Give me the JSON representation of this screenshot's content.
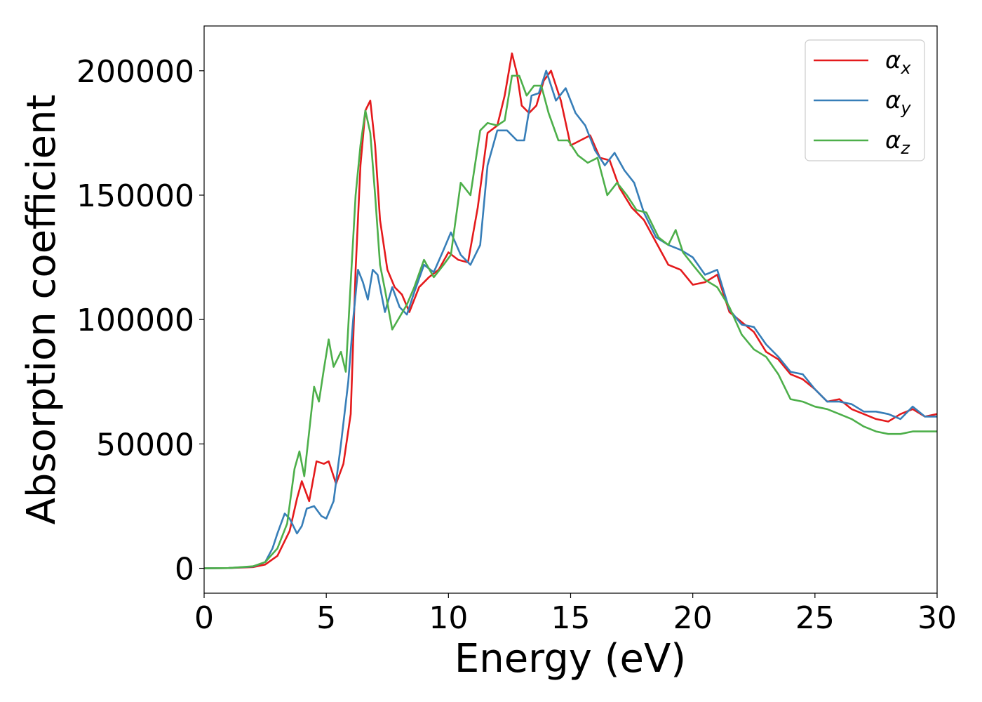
{
  "chart_data": {
    "type": "line",
    "xlabel": "Energy (eV)",
    "ylabel": "Absorption coefficient",
    "xlim": [
      0,
      30
    ],
    "ylim": [
      -10000,
      218000
    ],
    "xticks": [
      0,
      5,
      10,
      15,
      20,
      25,
      30
    ],
    "xtick_labels": [
      "0",
      "5",
      "10",
      "15",
      "20",
      "25",
      "30"
    ],
    "yticks": [
      0,
      50000,
      100000,
      150000,
      200000
    ],
    "ytick_labels": [
      "0",
      "50000",
      "100000",
      "150000",
      "200000"
    ],
    "grid": false,
    "legend_position": "top-right",
    "series": [
      {
        "name": "α",
        "subscript": "x",
        "color": "#e41a1c",
        "x": [
          0,
          1,
          2,
          2.5,
          3,
          3.5,
          3.8,
          4.0,
          4.3,
          4.6,
          4.9,
          5.1,
          5.4,
          5.7,
          6.0,
          6.2,
          6.4,
          6.6,
          6.8,
          7.0,
          7.2,
          7.5,
          7.8,
          8.1,
          8.4,
          8.8,
          9.2,
          9.6,
          10.0,
          10.4,
          10.8,
          11.2,
          11.6,
          12.0,
          12.3,
          12.6,
          12.8,
          13.0,
          13.3,
          13.6,
          13.9,
          14.2,
          14.6,
          15.0,
          15.4,
          15.8,
          16.2,
          16.6,
          17.0,
          17.5,
          18.0,
          18.5,
          19.0,
          19.5,
          20.0,
          20.5,
          21.0,
          21.5,
          22.0,
          22.5,
          23.0,
          23.5,
          24.0,
          24.5,
          25.0,
          25.5,
          26.0,
          26.5,
          27.0,
          27.5,
          28.0,
          28.5,
          29.0,
          29.5,
          30.0
        ],
        "y": [
          0,
          100,
          500,
          1500,
          5000,
          15000,
          28000,
          35000,
          27000,
          43000,
          42000,
          43000,
          34000,
          42000,
          62000,
          120000,
          162000,
          184000,
          188000,
          170000,
          140000,
          120000,
          113000,
          110000,
          103000,
          113000,
          117000,
          120000,
          127000,
          124000,
          123000,
          145000,
          175000,
          178000,
          190000,
          207000,
          199000,
          186000,
          183000,
          186000,
          196000,
          200000,
          188000,
          170000,
          172000,
          174000,
          165000,
          164000,
          153000,
          145000,
          140000,
          131000,
          122000,
          120000,
          114000,
          115000,
          118000,
          103000,
          99000,
          95000,
          87000,
          84000,
          78000,
          76000,
          72000,
          67000,
          68000,
          64000,
          62000,
          60000,
          59000,
          62000,
          64000,
          61000,
          62000
        ]
      },
      {
        "name": "α",
        "subscript": "y",
        "color": "#377eb8",
        "x": [
          0,
          1,
          2,
          2.5,
          2.8,
          3.0,
          3.3,
          3.5,
          3.8,
          4.0,
          4.2,
          4.5,
          4.8,
          5.0,
          5.3,
          5.6,
          5.9,
          6.1,
          6.3,
          6.5,
          6.7,
          6.9,
          7.1,
          7.4,
          7.7,
          8.0,
          8.3,
          8.6,
          9.0,
          9.4,
          9.8,
          10.1,
          10.5,
          10.9,
          11.3,
          11.6,
          12.0,
          12.4,
          12.8,
          13.1,
          13.4,
          13.7,
          14.0,
          14.4,
          14.8,
          15.2,
          15.6,
          16.0,
          16.4,
          16.8,
          17.2,
          17.6,
          18.0,
          18.5,
          19.0,
          19.5,
          20.0,
          20.5,
          21.0,
          21.5,
          22.0,
          22.5,
          23.0,
          23.5,
          24.0,
          24.5,
          25.0,
          25.5,
          26.0,
          26.5,
          27.0,
          27.5,
          28.0,
          28.5,
          29.0,
          29.5,
          30.0
        ],
        "y": [
          0,
          100,
          700,
          2500,
          8000,
          14000,
          22000,
          20000,
          14000,
          17000,
          24000,
          25000,
          21000,
          20000,
          27000,
          50000,
          75000,
          100000,
          120000,
          115000,
          108000,
          120000,
          118000,
          103000,
          113000,
          105000,
          102000,
          111000,
          122000,
          119000,
          128000,
          135000,
          126000,
          122000,
          130000,
          162000,
          176000,
          176000,
          172000,
          172000,
          190000,
          191000,
          200000,
          188000,
          193000,
          183000,
          178000,
          168000,
          162000,
          167000,
          160000,
          155000,
          143000,
          133000,
          130000,
          128000,
          125000,
          118000,
          120000,
          104000,
          98000,
          97000,
          90000,
          85000,
          79000,
          78000,
          72000,
          67000,
          67000,
          66000,
          63000,
          63000,
          62000,
          60000,
          65000,
          61000,
          61000
        ]
      },
      {
        "name": "α",
        "subscript": "z",
        "color": "#4daf4a",
        "x": [
          0,
          1,
          2,
          2.5,
          3.0,
          3.4,
          3.7,
          3.9,
          4.1,
          4.3,
          4.5,
          4.7,
          4.9,
          5.1,
          5.3,
          5.6,
          5.8,
          6.0,
          6.2,
          6.4,
          6.6,
          6.8,
          7.0,
          7.2,
          7.4,
          7.7,
          8.0,
          8.3,
          8.6,
          9.0,
          9.4,
          9.8,
          10.1,
          10.5,
          10.9,
          11.3,
          11.6,
          12.0,
          12.3,
          12.6,
          12.9,
          13.2,
          13.5,
          13.8,
          14.1,
          14.5,
          14.9,
          15.3,
          15.7,
          16.1,
          16.5,
          16.9,
          17.3,
          17.7,
          18.1,
          18.6,
          19.0,
          19.3,
          19.6,
          20.0,
          20.5,
          21.0,
          21.5,
          22.0,
          22.5,
          23.0,
          23.5,
          24.0,
          24.5,
          25.0,
          25.5,
          26.0,
          26.5,
          27.0,
          27.5,
          28.0,
          28.5,
          29.0,
          29.5,
          30.0
        ],
        "y": [
          0,
          100,
          800,
          2500,
          8000,
          18000,
          40000,
          47000,
          37000,
          55000,
          73000,
          67000,
          80000,
          92000,
          81000,
          87000,
          79000,
          115000,
          150000,
          170000,
          184000,
          175000,
          150000,
          122000,
          112000,
          96000,
          101000,
          106000,
          113000,
          124000,
          117000,
          122000,
          126000,
          155000,
          150000,
          176000,
          179000,
          178000,
          180000,
          198000,
          198000,
          190000,
          194000,
          194000,
          183000,
          172000,
          172000,
          166000,
          163000,
          165000,
          150000,
          155000,
          150000,
          144000,
          143000,
          133000,
          130000,
          136000,
          127000,
          122000,
          116000,
          113000,
          105000,
          94000,
          88000,
          85000,
          78000,
          68000,
          67000,
          65000,
          64000,
          62000,
          60000,
          57000,
          55000,
          54000,
          54000,
          55000,
          55000,
          55000
        ]
      }
    ]
  }
}
